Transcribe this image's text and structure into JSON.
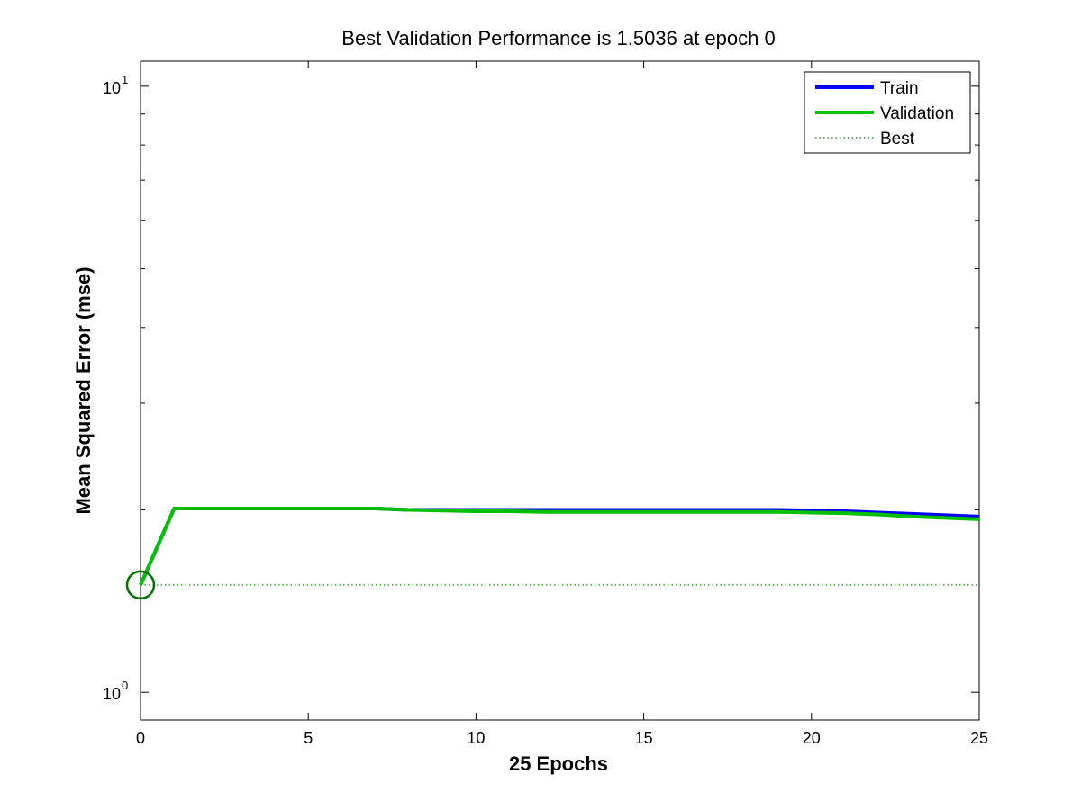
{
  "chart_data": {
    "type": "line",
    "title": "Best Validation Performance is 1.5036 at epoch 0",
    "xlabel": "25 Epochs",
    "ylabel": "Mean Squared Error  (mse)",
    "xlim": [
      0,
      25
    ],
    "ylim": [
      0.9,
      11
    ],
    "yscale": "log",
    "xticks": [
      0,
      5,
      10,
      15,
      20,
      25
    ],
    "yticks": [
      {
        "value": 1,
        "base": "10",
        "exp": "0"
      },
      {
        "value": 10,
        "base": "10",
        "exp": "1"
      }
    ],
    "grid": false,
    "legend_position": "top-right",
    "series": [
      {
        "name": "Train",
        "color": "#0000ff",
        "style": "solid",
        "x": [
          0,
          1,
          2,
          3,
          4,
          5,
          6,
          7,
          8,
          9,
          10,
          11,
          12,
          13,
          14,
          15,
          16,
          17,
          18,
          19,
          20,
          21,
          22,
          23,
          24,
          25
        ],
        "y": [
          1.5036,
          2.01,
          2.01,
          2.01,
          2.01,
          2.01,
          2.01,
          2.01,
          2.0,
          2.0,
          2.0,
          2.0,
          2.0,
          2.0,
          2.0,
          2.0,
          2.0,
          2.0,
          2.0,
          2.0,
          1.995,
          1.99,
          1.98,
          1.97,
          1.96,
          1.95
        ]
      },
      {
        "name": "Validation",
        "color": "#00c000",
        "style": "solid",
        "x": [
          0,
          1,
          2,
          3,
          4,
          5,
          6,
          7,
          8,
          9,
          10,
          11,
          12,
          13,
          14,
          15,
          16,
          17,
          18,
          19,
          20,
          21,
          22,
          23,
          24,
          25
        ],
        "y": [
          1.5036,
          2.01,
          2.01,
          2.01,
          2.01,
          2.01,
          2.01,
          2.01,
          2.0,
          1.995,
          1.99,
          1.99,
          1.985,
          1.985,
          1.985,
          1.985,
          1.985,
          1.985,
          1.985,
          1.985,
          1.98,
          1.975,
          1.965,
          1.95,
          1.94,
          1.93
        ]
      },
      {
        "name": "Best",
        "color": "#008000",
        "style": "dotted",
        "y_constant": 1.5036
      }
    ],
    "best_marker": {
      "x": 0,
      "y": 1.5036,
      "color": "#007000"
    }
  }
}
